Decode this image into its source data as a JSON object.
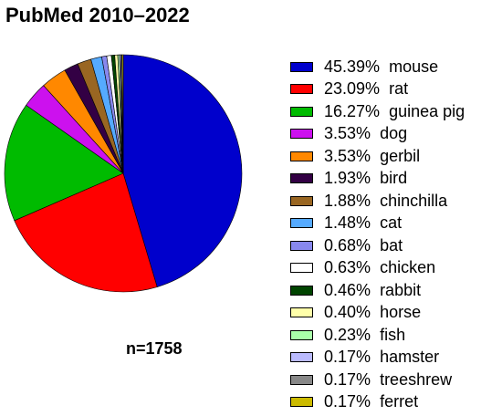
{
  "chart_data": {
    "type": "pie",
    "title": "PubMed 2010–2022",
    "annotation": "n=1758",
    "legend_position": "right",
    "slices": [
      {
        "label": "mouse",
        "value": 45.39,
        "display": "45.39%",
        "color": "#0000cc"
      },
      {
        "label": "rat",
        "value": 23.09,
        "display": "23.09%",
        "color": "#ff0000"
      },
      {
        "label": "guinea pig",
        "value": 16.27,
        "display": "16.27%",
        "color": "#00bb00"
      },
      {
        "label": "dog",
        "value": 3.53,
        "display": "3.53%",
        "color": "#cc11ee"
      },
      {
        "label": "gerbil",
        "value": 3.53,
        "display": "3.53%",
        "color": "#ff8800"
      },
      {
        "label": "bird",
        "value": 1.93,
        "display": "1.93%",
        "color": "#330044"
      },
      {
        "label": "chinchilla",
        "value": 1.88,
        "display": "1.88%",
        "color": "#996622"
      },
      {
        "label": "cat",
        "value": 1.48,
        "display": "1.48%",
        "color": "#55aaff"
      },
      {
        "label": "bat",
        "value": 0.68,
        "display": "0.68%",
        "color": "#8888ee"
      },
      {
        "label": "chicken",
        "value": 0.63,
        "display": "0.63%",
        "color": "#ffffff"
      },
      {
        "label": "rabbit",
        "value": 0.46,
        "display": "0.46%",
        "color": "#004400"
      },
      {
        "label": "horse",
        "value": 0.4,
        "display": "0.40%",
        "color": "#ffffaa"
      },
      {
        "label": "fish",
        "value": 0.23,
        "display": "0.23%",
        "color": "#aaffaa"
      },
      {
        "label": "hamster",
        "value": 0.17,
        "display": "0.17%",
        "color": "#bbbbff"
      },
      {
        "label": "treeshrew",
        "value": 0.17,
        "display": "0.17%",
        "color": "#888888"
      },
      {
        "label": "ferret",
        "value": 0.17,
        "display": "0.17%",
        "color": "#ccbb00"
      }
    ]
  }
}
